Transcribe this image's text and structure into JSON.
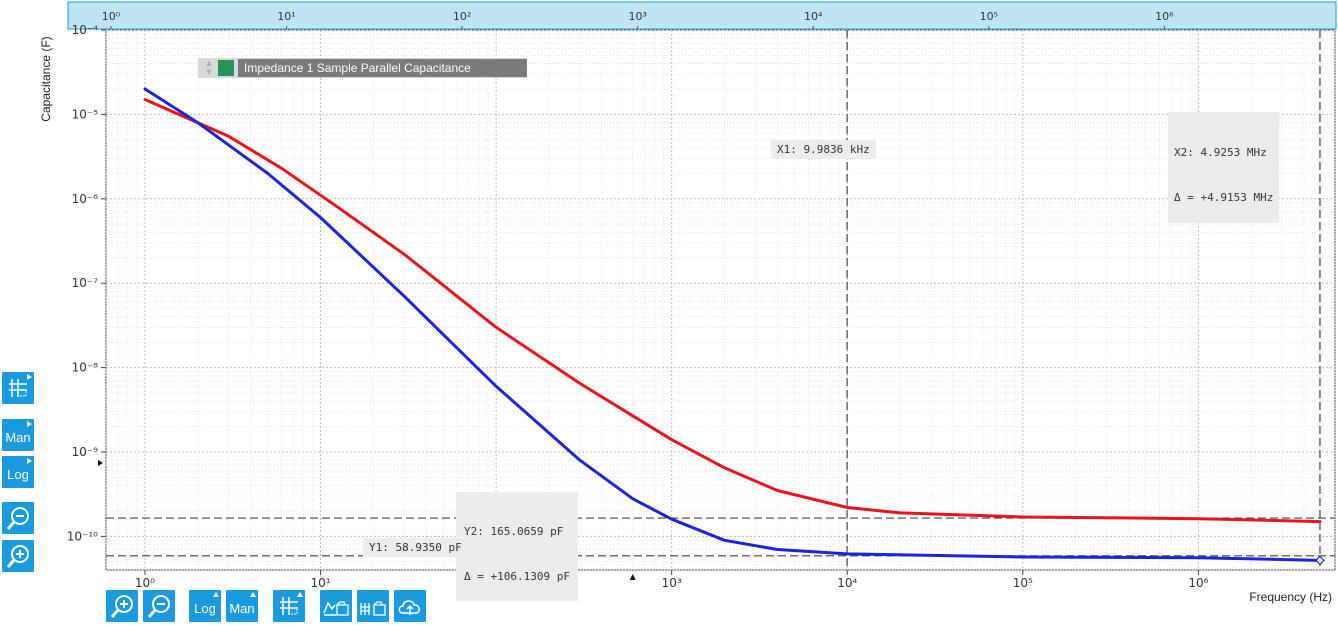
{
  "chart_data": {
    "type": "line",
    "title": "",
    "xlabel": "Frequency (Hz)",
    "ylabel": "Capacitance (F)",
    "x_scale": "log",
    "y_scale": "log",
    "xlim": [
      0.6,
      6000000
    ],
    "ylim": [
      4e-11,
      0.0001
    ],
    "grid": true,
    "x_ticks": [
      {
        "value": 1,
        "label": "10⁰"
      },
      {
        "value": 10,
        "label": "10¹"
      },
      {
        "value": 100,
        "label": "10²"
      },
      {
        "value": 1000,
        "label": "10³"
      },
      {
        "value": 10000,
        "label": "10⁴"
      },
      {
        "value": 100000,
        "label": "10⁵"
      },
      {
        "value": 1000000,
        "label": "10⁶"
      }
    ],
    "y_ticks": [
      {
        "value": 0.0001,
        "label": "10⁻⁴"
      },
      {
        "value": 1e-05,
        "label": "10⁻⁵"
      },
      {
        "value": 1e-06,
        "label": "10⁻⁶"
      },
      {
        "value": 1e-07,
        "label": "10⁻⁷"
      },
      {
        "value": 1e-08,
        "label": "10⁻⁸"
      },
      {
        "value": 1e-09,
        "label": "10⁻⁹"
      },
      {
        "value": 1e-10,
        "label": "10⁻¹⁰"
      }
    ],
    "series": [
      {
        "name": "Impedance 1 Sample Parallel Capacitance",
        "color": "#e8141e",
        "x": [
          1,
          3,
          6,
          12,
          30,
          100,
          300,
          1000,
          2000,
          4000,
          10000,
          20000,
          100000,
          1000000,
          4925300
        ],
        "y": [
          1.5e-05,
          5.5e-06,
          2.3e-06,
          8.5e-07,
          2.2e-07,
          3e-08,
          6.5e-09,
          1.4e-09,
          6.5e-10,
          3.5e-10,
          2.2e-10,
          1.9e-10,
          1.7e-10,
          1.62e-10,
          1.5e-10
        ]
      },
      {
        "color": "#1c25d8",
        "x": [
          1,
          2,
          5,
          10,
          30,
          100,
          300,
          600,
          1000,
          2000,
          4000,
          10000,
          100000,
          1000000,
          4925300
        ],
        "y": [
          2e-05,
          8e-06,
          2e-06,
          6e-07,
          7e-08,
          6e-09,
          8e-10,
          2.8e-10,
          1.6e-10,
          9e-11,
          7e-11,
          6.2e-11,
          5.7e-11,
          5.6e-11,
          5.2e-11
        ]
      }
    ],
    "cursors": {
      "x1": {
        "value": 9983.6,
        "label": "X1: 9.9836 kHz"
      },
      "x2": {
        "value": 4925300,
        "label": "X2: 4.9253 MHz",
        "delta": "Δ = +4.9153 MHz"
      },
      "y1": {
        "value": 5.8935e-11,
        "label": "Y1: 58.9350 pF"
      },
      "y2": {
        "value": 1.650659e-10,
        "label": "Y2: 165.0659 pF",
        "delta": "Δ = +106.1309 pF"
      }
    }
  },
  "legend": {
    "label": "Impedance 1 Sample Parallel Capacitance",
    "color": "#22955a"
  },
  "left_toolbar": {
    "buttons": [
      {
        "id": "grid-cursor",
        "label": ""
      },
      {
        "id": "y-man",
        "label": "Man"
      },
      {
        "id": "y-log",
        "label": "Log"
      },
      {
        "id": "y-zoom-out",
        "label": ""
      },
      {
        "id": "y-zoom-in",
        "label": ""
      }
    ]
  },
  "bottom_toolbar": {
    "buttons": [
      {
        "id": "x-zoom-in",
        "label": ""
      },
      {
        "id": "x-zoom-out",
        "label": ""
      },
      {
        "id": "x-log",
        "label": "Log"
      },
      {
        "id": "x-man",
        "label": "Man"
      },
      {
        "id": "grid-cursor",
        "label": ""
      },
      {
        "id": "chart-export",
        "label": ""
      },
      {
        "id": "table-export",
        "label": ""
      },
      {
        "id": "cloud-upload",
        "label": ""
      }
    ]
  },
  "colors": {
    "accent": "#1a9be0",
    "top_bar": "#bfe3f7"
  }
}
